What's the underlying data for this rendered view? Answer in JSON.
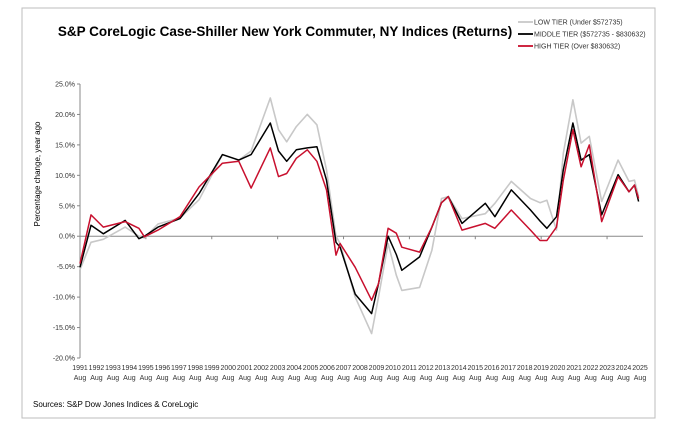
{
  "chart_data": {
    "type": "line",
    "title": "S&P CoreLogic Case-Shiller New York Commuter, NY Indices (Returns)",
    "ylabel": "Percentage change, year ago",
    "xlabel": "",
    "source": "Sources: S&P Dow Jones Indices & CoreLogic",
    "ylim": [
      -20,
      25
    ],
    "yticks": [
      "-20.0%",
      "-15.0%",
      "-10.0%",
      "-5.0%",
      "0.0%",
      "5.0%",
      "10.0%",
      "15.0%",
      "20.0%",
      "25.0%"
    ],
    "ytick_values": [
      -20,
      -15,
      -10,
      -5,
      0,
      5,
      10,
      15,
      20,
      25
    ],
    "xlim": [
      "1991-08",
      "2025-09"
    ],
    "xtick_years": [
      "1991",
      "1992",
      "1993",
      "1994",
      "1995",
      "1996",
      "1997",
      "1998",
      "1999",
      "2000",
      "2001",
      "2002",
      "2003",
      "2004",
      "2005",
      "2006",
      "2007",
      "2008",
      "2009",
      "2010",
      "2011",
      "2012",
      "2013",
      "2014",
      "2015",
      "2016",
      "2017",
      "2018",
      "2019",
      "2020",
      "2021",
      "2022",
      "2023",
      "2024",
      "2025"
    ],
    "xtick_month": "Aug",
    "grid": false,
    "legend": "top-right",
    "x": [
      "1991-08",
      "1992-04",
      "1993-01",
      "1994-05",
      "1995-03",
      "1995-07",
      "1996-05",
      "1997-09",
      "1998-11",
      "2000-04",
      "2001-04",
      "2002-01",
      "2003-03",
      "2003-09",
      "2004-03",
      "2004-10",
      "2005-06",
      "2006-01",
      "2006-08",
      "2007-03",
      "2007-06",
      "2008-05",
      "2009-05",
      "2009-10",
      "2010-05",
      "2010-11",
      "2011-03",
      "2012-04",
      "2013-01",
      "2013-08",
      "2014-01",
      "2014-11",
      "2016-04",
      "2016-11",
      "2017-11",
      "2019-01",
      "2019-08",
      "2020-01",
      "2020-08",
      "2021-01",
      "2021-08",
      "2022-02",
      "2022-08",
      "2023-05",
      "2024-05",
      "2025-01",
      "2025-05",
      "2025-08"
    ],
    "series": [
      {
        "name": "LOW TIER (Under $572735)",
        "color": "#c8c8c8",
        "values": [
          -5.5,
          -1.0,
          -0.5,
          1.5,
          0.0,
          -0.3,
          2.0,
          3.0,
          6.0,
          13.4,
          12.5,
          14.0,
          22.7,
          17.5,
          15.5,
          18.0,
          20.0,
          18.3,
          10.9,
          0.0,
          -1.2,
          -10.0,
          -16.0,
          -10.0,
          -1.2,
          -6.4,
          -8.9,
          -8.4,
          -2.3,
          6.2,
          6.5,
          2.9,
          3.7,
          5.4,
          9.0,
          6.2,
          5.5,
          5.9,
          1.0,
          13.6,
          22.4,
          15.3,
          16.4,
          5.7,
          12.5,
          9.0,
          9.2,
          6.5
        ]
      },
      {
        "name": "MIDDLE TIER ($572735 - $830632)",
        "color": "#000000",
        "values": [
          -5.1,
          1.8,
          0.4,
          2.6,
          -0.4,
          0.0,
          1.5,
          2.9,
          7.0,
          13.4,
          12.5,
          13.4,
          18.6,
          14.0,
          12.3,
          14.2,
          14.5,
          14.7,
          9.2,
          -1.0,
          -1.8,
          -9.5,
          -12.7,
          -7.8,
          0.0,
          -3.0,
          -5.6,
          -3.4,
          1.5,
          5.5,
          6.5,
          2.1,
          5.4,
          3.2,
          7.6,
          4.3,
          2.5,
          1.3,
          3.2,
          10.9,
          18.6,
          12.5,
          13.4,
          3.5,
          10.1,
          7.3,
          8.4,
          5.7
        ]
      },
      {
        "name": "HIGH TIER (Over $830632)",
        "color": "#c8102e",
        "values": [
          -4.5,
          3.5,
          1.5,
          2.4,
          1.3,
          -0.1,
          1.0,
          3.2,
          8.1,
          12.0,
          12.3,
          7.9,
          14.5,
          9.8,
          10.3,
          12.8,
          14.2,
          12.3,
          7.6,
          -3.1,
          -1.2,
          -5.1,
          -10.5,
          -7.8,
          1.3,
          0.5,
          -1.8,
          -2.6,
          1.5,
          5.5,
          6.5,
          1.0,
          2.1,
          1.3,
          4.3,
          1.0,
          -0.7,
          -0.7,
          1.5,
          9.2,
          17.5,
          11.4,
          15.0,
          2.4,
          9.8,
          7.3,
          8.4,
          6.2
        ]
      }
    ]
  }
}
